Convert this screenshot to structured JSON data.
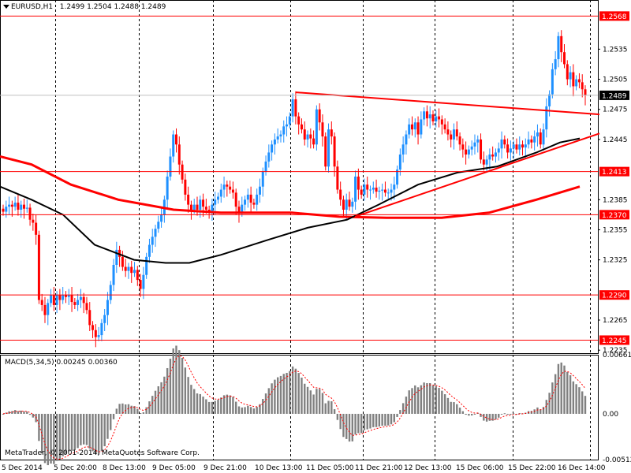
{
  "header": {
    "symbol": "EURUSD,H1",
    "ohlc": "1.2499 1.2504 1.2488 1.2489"
  },
  "macd": {
    "label": "MACD(5,34,5) 0.00245 0.00360",
    "scale_labels": [
      "0.00661",
      "0.00",
      "-0.00512"
    ],
    "ylim": [
      -0.00512,
      0.00661
    ]
  },
  "copyright": "MetaTrader, © 2001-2014, MetaQuotes Software Corp.",
  "colors": {
    "background": "#ffffff",
    "bull": "#1e90ff",
    "bear": "#ff0000",
    "line_red": "#ff0000",
    "ma_black": "#000000",
    "grid": "#000000",
    "hist": "#808080",
    "label_bg_red": "#ff0000"
  },
  "chart_data": {
    "type": "candlestick",
    "symbol": "EURUSD",
    "timeframe": "H1",
    "ylim": [
      1.2232,
      1.2584
    ],
    "price_labels": [
      "1.2535",
      "1.2505",
      "1.2475",
      "1.2445",
      "1.2385",
      "1.2355",
      "1.2325",
      "1.2265",
      "1.2235"
    ],
    "x_labels": [
      "5 Dec 2014",
      "5 Dec 20:00",
      "8 Dec 13:00",
      "9 Dec 05:00",
      "9 Dec 21:00",
      "10 Dec 13:00",
      "11 Dec 05:00",
      "11 Dec 21:00",
      "12 Dec 13:00",
      "15 Dec 06:00",
      "15 Dec 22:00",
      "16 Dec 14:00"
    ],
    "horizontal_levels": [
      {
        "price": 1.2568,
        "label": "1.2568"
      },
      {
        "price": 1.2413,
        "label": "1.2413"
      },
      {
        "price": 1.237,
        "label": "1.2370"
      },
      {
        "price": 1.229,
        "label": "1.2290"
      },
      {
        "price": 1.2245,
        "label": "1.2245"
      }
    ],
    "current_price": {
      "price": 1.2489,
      "label": "1.2489"
    },
    "closes": [
      1.2373,
      1.2378,
      1.238,
      1.2378,
      1.2382,
      1.2375,
      1.238,
      1.2376,
      1.2377,
      1.2365,
      1.2362,
      1.235,
      1.2285,
      1.228,
      1.227,
      1.2282,
      1.229,
      1.228,
      1.229,
      1.2285,
      1.229,
      1.2288,
      1.229,
      1.2283,
      1.228,
      1.2285,
      1.2288,
      1.2282,
      1.2275,
      1.226,
      1.2255,
      1.2248,
      1.225,
      1.2262,
      1.227,
      1.2285,
      1.23,
      1.232,
      1.2335,
      1.2328,
      1.2318,
      1.2314,
      1.2318,
      1.2312,
      1.2315,
      1.2305,
      1.2296,
      1.231,
      1.2328,
      1.234,
      1.2348,
      1.2356,
      1.2363,
      1.237,
      1.2385,
      1.2408,
      1.2428,
      1.245,
      1.244,
      1.242,
      1.2405,
      1.239,
      1.238,
      1.2375,
      1.238,
      1.2375,
      1.2385,
      1.2378,
      1.2375,
      1.2372,
      1.238,
      1.2385,
      1.2388,
      1.2395,
      1.24,
      1.2398,
      1.2395,
      1.2392,
      1.2378,
      1.2372,
      1.238,
      1.2385,
      1.239,
      1.2382,
      1.238,
      1.239,
      1.2398,
      1.2413,
      1.2423,
      1.2432,
      1.244,
      1.2445,
      1.2448,
      1.245,
      1.2458,
      1.246,
      1.2468,
      1.2485,
      1.2468,
      1.246,
      1.2455,
      1.2445,
      1.245,
      1.2446,
      1.244,
      1.2475,
      1.2462,
      1.2448,
      1.2418,
      1.2455,
      1.2448,
      1.2418,
      1.2395,
      1.2385,
      1.2375,
      1.2385,
      1.2378,
      1.2383,
      1.2408,
      1.2395,
      1.239,
      1.24,
      1.2395,
      1.2395,
      1.2397,
      1.2393,
      1.2394,
      1.2395,
      1.2392,
      1.2392,
      1.2395,
      1.24,
      1.2415,
      1.243,
      1.244,
      1.245,
      1.246,
      1.2455,
      1.2462,
      1.245,
      1.2465,
      1.2473,
      1.2466,
      1.247,
      1.2463,
      1.2468,
      1.2465,
      1.246,
      1.2455,
      1.245,
      1.2445,
      1.2455,
      1.2448,
      1.244,
      1.2435,
      1.243,
      1.2435,
      1.2438,
      1.2442,
      1.2445,
      1.2425,
      1.242,
      1.2425,
      1.243,
      1.2428,
      1.2432,
      1.2436,
      1.2445,
      1.244,
      1.2432,
      1.2436,
      1.244,
      1.2435,
      1.244,
      1.2437,
      1.244,
      1.2445,
      1.2442,
      1.2448,
      1.2452,
      1.244,
      1.2455,
      1.2478,
      1.249,
      1.2515,
      1.2525,
      1.2548,
      1.2532,
      1.252,
      1.2505,
      1.2512,
      1.2498,
      1.2505,
      1.2502,
      1.2495,
      1.2489
    ],
    "ma_red_long": [
      [
        0,
        1.2428
      ],
      [
        40,
        1.242
      ],
      [
        90,
        1.24
      ],
      [
        150,
        1.2385
      ],
      [
        220,
        1.2375
      ],
      [
        280,
        1.2372
      ],
      [
        370,
        1.2372
      ],
      [
        430,
        1.2368
      ],
      [
        490,
        1.2367
      ],
      [
        560,
        1.2367
      ],
      [
        620,
        1.2372
      ],
      [
        680,
        1.2385
      ],
      [
        735,
        1.2398
      ]
    ],
    "ma_black": [
      [
        0,
        1.2398
      ],
      [
        40,
        1.2385
      ],
      [
        80,
        1.237
      ],
      [
        120,
        1.234
      ],
      [
        170,
        1.2325
      ],
      [
        210,
        1.2322
      ],
      [
        240,
        1.2322
      ],
      [
        280,
        1.233
      ],
      [
        340,
        1.2345
      ],
      [
        390,
        1.2357
      ],
      [
        440,
        1.2365
      ],
      [
        480,
        1.238
      ],
      [
        530,
        1.24
      ],
      [
        580,
        1.2412
      ],
      [
        630,
        1.2418
      ],
      [
        680,
        1.2432
      ],
      [
        710,
        1.2442
      ],
      [
        735,
        1.2446
      ]
    ],
    "trendlines": [
      {
        "from": [
          375,
          1.2492
        ],
        "to": [
          760,
          1.247
        ]
      },
      {
        "from": [
          450,
          1.2368
        ],
        "to": [
          760,
          1.2451
        ]
      }
    ]
  }
}
